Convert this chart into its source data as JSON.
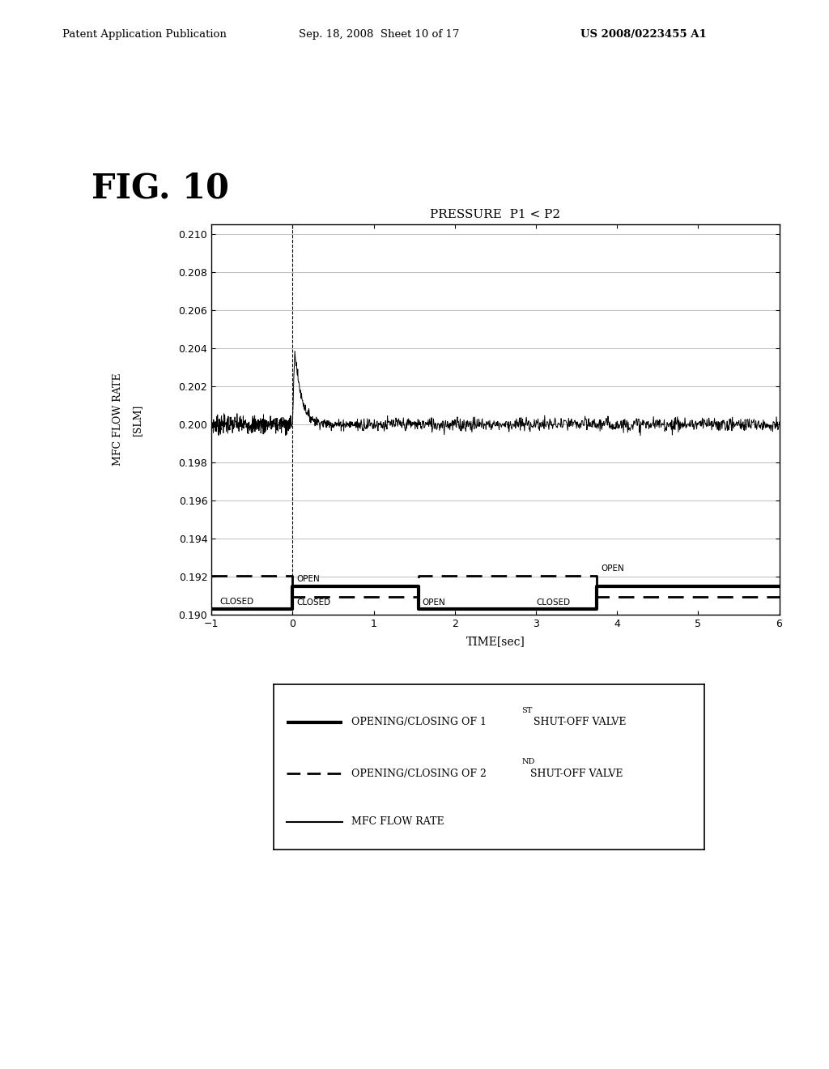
{
  "title_header": "Patent Application Publication",
  "title_date": "Sep. 18, 2008  Sheet 10 of 17",
  "title_patent": "US 2008/0223455 A1",
  "fig_label": "FIG. 10",
  "chart_title": "PRESSURE  P1 < P2",
  "ylabel_line1": "MFC FLOW RATE",
  "ylabel_line2": "[SLM]",
  "xlabel": "TIME[sec]",
  "xlim": [
    -1,
    6
  ],
  "ylim": [
    0.19,
    0.2105
  ],
  "yticks": [
    0.19,
    0.192,
    0.194,
    0.196,
    0.198,
    0.2,
    0.202,
    0.204,
    0.206,
    0.208,
    0.21
  ],
  "xticks": [
    -1,
    0,
    1,
    2,
    3,
    4,
    5,
    6
  ],
  "background": "#ffffff",
  "v1_closed": 0.1903,
  "v1_open": 0.1915,
  "v2_closed": 0.19095,
  "v2_open": 0.19205,
  "flow_base": 0.2,
  "flow_spike": 0.2055,
  "flow_noise": 0.00025,
  "flow_noise_post": 0.00018
}
